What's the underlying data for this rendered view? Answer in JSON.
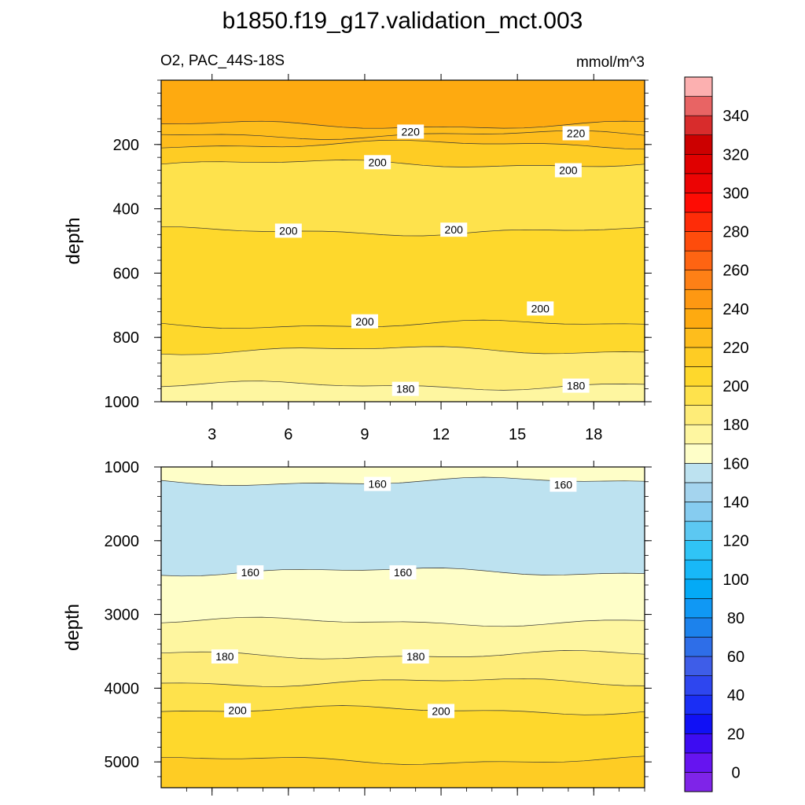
{
  "chart_data": {
    "type": "contour",
    "title": "b1850.f19_g17.validation_mct.003",
    "subtitle_left": "O2, PAC_44S-18S",
    "subtitle_right": "mmol/m^3",
    "panels": [
      {
        "name": "upper",
        "ylabel": "depth",
        "xlim": [
          1,
          20
        ],
        "ylim": [
          1000,
          0
        ],
        "x_ticks": [
          3,
          6,
          9,
          12,
          15,
          18
        ],
        "x_tick_labels": [
          "3",
          "6",
          "9",
          "12",
          "15",
          "18"
        ],
        "y_ticks": [
          200,
          400,
          600,
          800,
          1000
        ],
        "y_tick_labels": [
          "200",
          "400",
          "600",
          "800",
          "1000"
        ],
        "bands": [
          {
            "from_depth": 0,
            "to_depth": 140,
            "value": 230
          },
          {
            "from_depth": 140,
            "to_depth": 170,
            "value": 225
          },
          {
            "from_depth": 170,
            "to_depth": 200,
            "value": 220
          },
          {
            "from_depth": 200,
            "to_depth": 260,
            "value": 215
          },
          {
            "from_depth": 260,
            "to_depth": 470,
            "value": 195
          },
          {
            "from_depth": 470,
            "to_depth": 760,
            "value": 205
          },
          {
            "from_depth": 760,
            "to_depth": 840,
            "value": 200
          },
          {
            "from_depth": 840,
            "to_depth": 950,
            "value": 185
          },
          {
            "from_depth": 950,
            "to_depth": 1000,
            "value": 178
          }
        ],
        "contour_labels": [
          {
            "x": 10.8,
            "depth": 160,
            "text": "220"
          },
          {
            "x": 17.3,
            "depth": 165,
            "text": "220"
          },
          {
            "x": 9.5,
            "depth": 255,
            "text": "200"
          },
          {
            "x": 17.0,
            "depth": 280,
            "text": "200"
          },
          {
            "x": 6.0,
            "depth": 468,
            "text": "200"
          },
          {
            "x": 12.5,
            "depth": 465,
            "text": "200"
          },
          {
            "x": 9.0,
            "depth": 750,
            "text": "200"
          },
          {
            "x": 15.9,
            "depth": 710,
            "text": "200"
          },
          {
            "x": 10.6,
            "depth": 960,
            "text": "180"
          },
          {
            "x": 17.3,
            "depth": 950,
            "text": "180"
          }
        ]
      },
      {
        "name": "lower",
        "ylabel": "depth",
        "xlim": [
          1,
          20
        ],
        "ylim": [
          5350,
          1000
        ],
        "y_ticks": [
          1000,
          2000,
          3000,
          4000,
          5000
        ],
        "y_tick_labels": [
          "1000",
          "2000",
          "3000",
          "4000",
          "5000"
        ],
        "bands": [
          {
            "from_depth": 1000,
            "to_depth": 1200,
            "value": 165
          },
          {
            "from_depth": 1200,
            "to_depth": 2420,
            "value": 150
          },
          {
            "from_depth": 2420,
            "to_depth": 3100,
            "value": 165
          },
          {
            "from_depth": 3100,
            "to_depth": 3550,
            "value": 175
          },
          {
            "from_depth": 3550,
            "to_depth": 3920,
            "value": 185
          },
          {
            "from_depth": 3920,
            "to_depth": 4300,
            "value": 195
          },
          {
            "from_depth": 4300,
            "to_depth": 4980,
            "value": 205
          },
          {
            "from_depth": 4980,
            "to_depth": 5350,
            "value": 215
          }
        ],
        "contour_labels": [
          {
            "x": 9.5,
            "depth": 1230,
            "text": "160"
          },
          {
            "x": 16.8,
            "depth": 1240,
            "text": "160"
          },
          {
            "x": 4.5,
            "depth": 2430,
            "text": "160"
          },
          {
            "x": 10.5,
            "depth": 2430,
            "text": "160"
          },
          {
            "x": 3.5,
            "depth": 3570,
            "text": "180"
          },
          {
            "x": 11.0,
            "depth": 3570,
            "text": "180"
          },
          {
            "x": 4.0,
            "depth": 4300,
            "text": "200"
          },
          {
            "x": 12.0,
            "depth": 4310,
            "text": "200"
          }
        ]
      }
    ],
    "colorbar": {
      "levels": [
        -10,
        0,
        10,
        20,
        30,
        40,
        50,
        60,
        70,
        80,
        90,
        100,
        110,
        120,
        130,
        140,
        150,
        160,
        170,
        180,
        190,
        200,
        210,
        220,
        230,
        240,
        250,
        260,
        270,
        280,
        290,
        300,
        310,
        320,
        330,
        340,
        350,
        360
      ],
      "tick_labels": [
        "0",
        "20",
        "40",
        "60",
        "80",
        "100",
        "120",
        "140",
        "160",
        "180",
        "200",
        "220",
        "240",
        "260",
        "280",
        "300",
        "320",
        "340"
      ],
      "tick_values": [
        0,
        20,
        40,
        60,
        80,
        100,
        120,
        140,
        160,
        180,
        200,
        220,
        240,
        260,
        280,
        300,
        320,
        340
      ],
      "colors_bottom_to_top": [
        "#7f24e8",
        "#6614f0",
        "#3d0cf2",
        "#1010f5",
        "#1a2ef5",
        "#2e46ef",
        "#3e5de8",
        "#2e6ee8",
        "#1c82ec",
        "#1098f4",
        "#04aaf6",
        "#18b8f8",
        "#30c4f6",
        "#5cc8f2",
        "#86ccf0",
        "#a4d4ee",
        "#bde2f0",
        "#fefec8",
        "#fef6a0",
        "#feec78",
        "#fee24c",
        "#fed82c",
        "#fecc24",
        "#febd1c",
        "#feaa10",
        "#fe9812",
        "#fe8016",
        "#fe6412",
        "#fe4c0c",
        "#fe2c08",
        "#fe0c04",
        "#ec0404",
        "#e00000",
        "#cc0000",
        "#d82c2c",
        "#e86464",
        "#fcb0b0"
      ]
    }
  }
}
